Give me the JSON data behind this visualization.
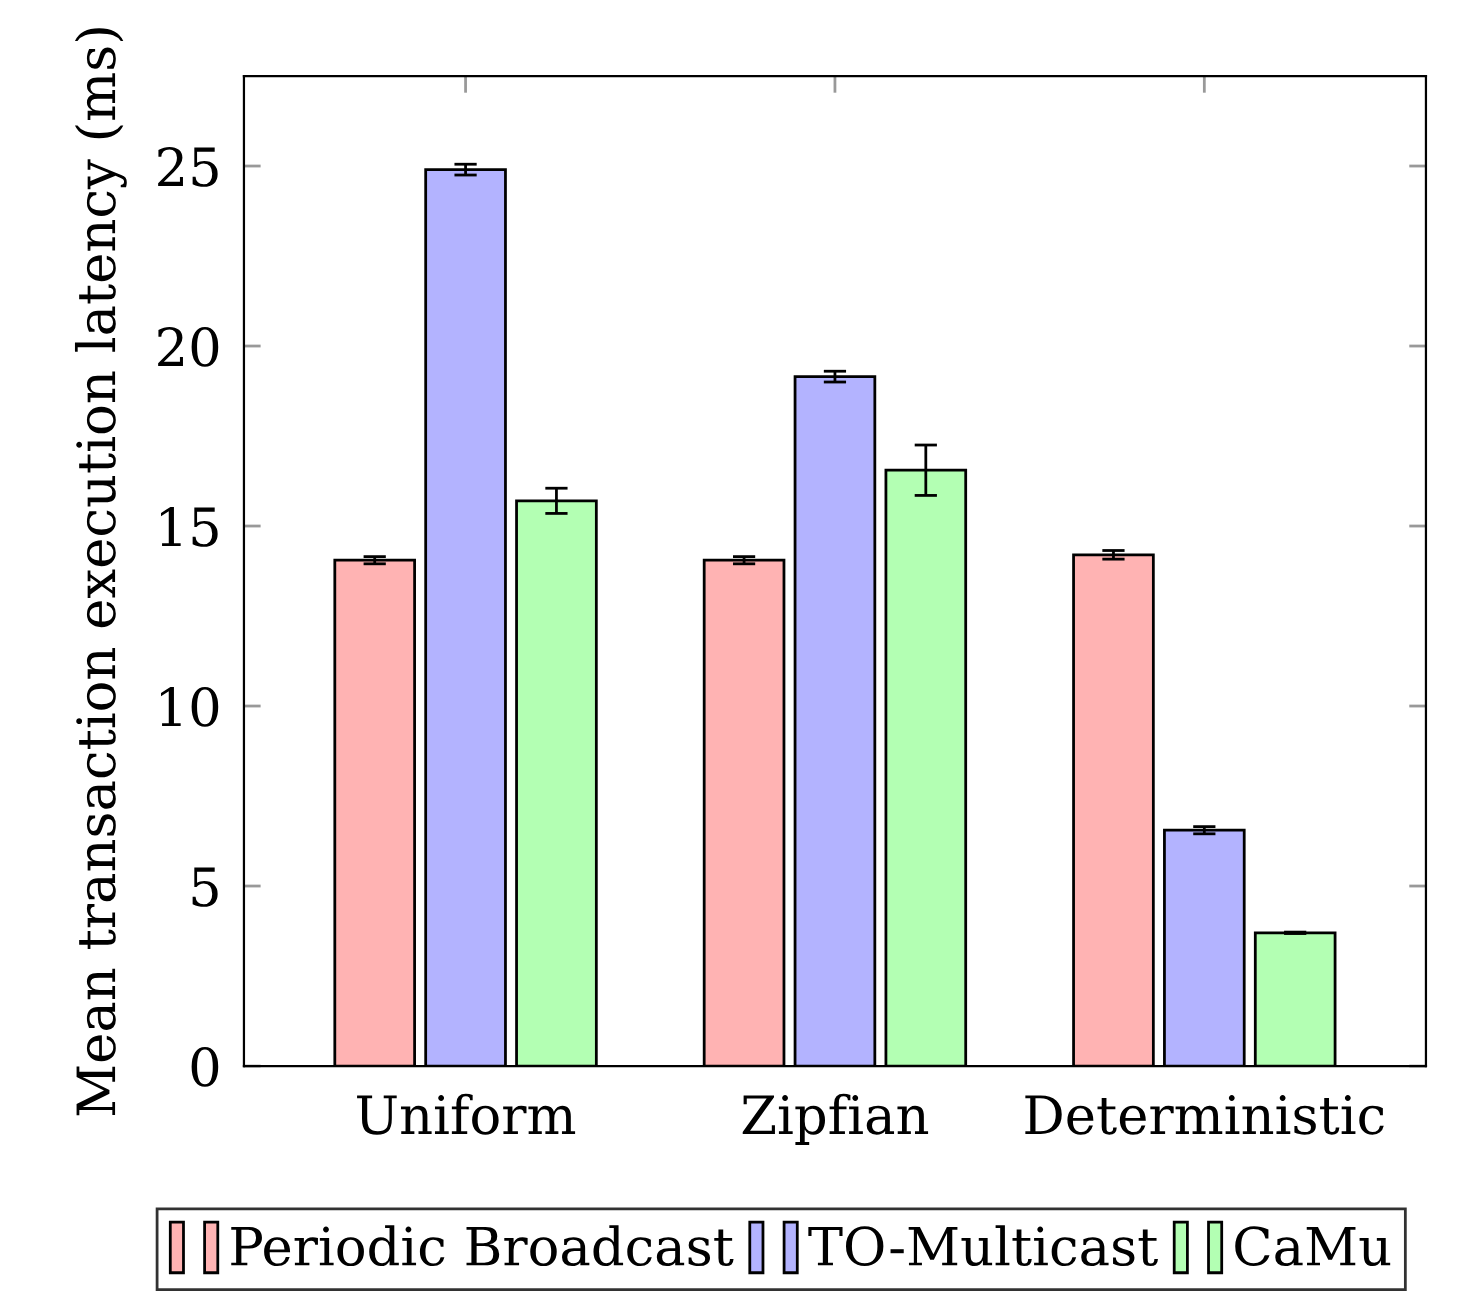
{
  "chart_data": {
    "type": "bar",
    "ylabel": "Mean transaction execution latency (ms)",
    "categories": [
      "Uniform",
      "Zipfian",
      "Deterministic"
    ],
    "series": [
      {
        "name": "Periodic Broadcast",
        "color": "#ffb3b3",
        "values": [
          14.05,
          14.05,
          14.2
        ],
        "errors": [
          0.1,
          0.1,
          0.12
        ]
      },
      {
        "name": "TO-Multicast",
        "color": "#b3b3ff",
        "values": [
          24.9,
          19.15,
          6.55
        ],
        "errors": [
          0.15,
          0.15,
          0.1
        ]
      },
      {
        "name": "CaMu",
        "color": "#b3ffb3",
        "values": [
          15.7,
          16.55,
          3.7
        ],
        "errors": [
          0.35,
          0.7,
          0.02
        ]
      }
    ],
    "ylim": [
      0,
      27.5
    ],
    "yticks": [
      0,
      5,
      10,
      15,
      20,
      25
    ],
    "grid": false,
    "legend": "bottom"
  }
}
